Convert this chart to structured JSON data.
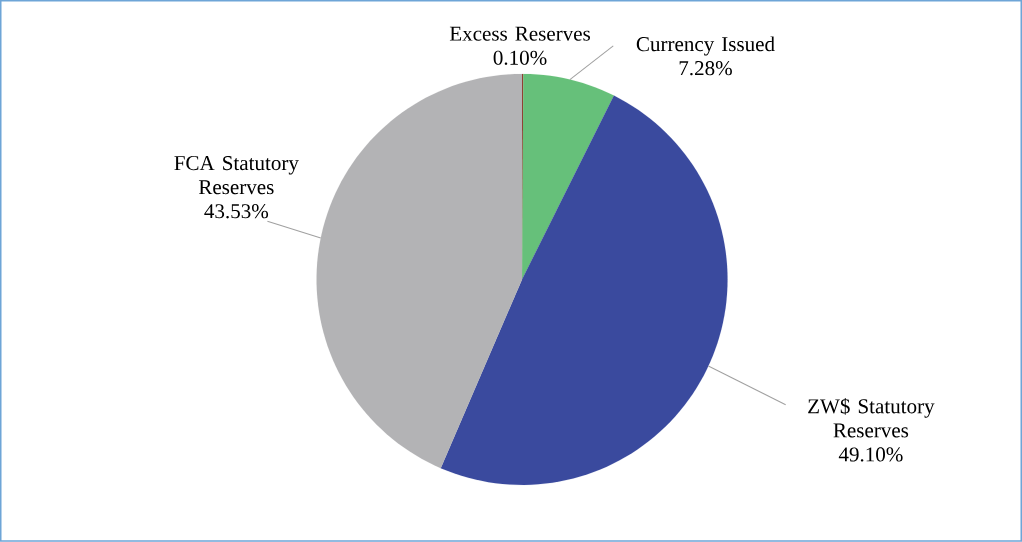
{
  "chart_data": {
    "type": "pie",
    "categories": [
      "Excess Reserves",
      "Currency Issued",
      "ZW$ Statutory Reserves",
      "FCA Statutory Reserves"
    ],
    "values": [
      0.1,
      7.28,
      49.1,
      43.53
    ],
    "value_labels": [
      "0.10%",
      "7.28%",
      "49.10%",
      "43.53%"
    ],
    "colors": [
      "#8b2a1e",
      "#66c07a",
      "#3a4a9e",
      "#b3b3b5"
    ]
  }
}
